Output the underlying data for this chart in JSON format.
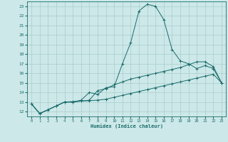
{
  "xlabel": "Humidex (Indice chaleur)",
  "bg_color": "#cce8e8",
  "grid_color": "#aacccc",
  "line_color": "#1a6b6b",
  "xlim": [
    -0.5,
    23.5
  ],
  "ylim": [
    11.5,
    23.5
  ],
  "yticks": [
    12,
    13,
    14,
    15,
    16,
    17,
    18,
    19,
    20,
    21,
    22,
    23
  ],
  "xticks": [
    0,
    1,
    2,
    3,
    4,
    5,
    6,
    7,
    8,
    9,
    10,
    11,
    12,
    13,
    14,
    15,
    16,
    17,
    18,
    19,
    20,
    21,
    22,
    23
  ],
  "line1_x": [
    0,
    1,
    2,
    3,
    4,
    5,
    6,
    7,
    8,
    9,
    10,
    11,
    12,
    13,
    14,
    15,
    16,
    17,
    18,
    19,
    20,
    21,
    22,
    23
  ],
  "line1_y": [
    12.8,
    11.8,
    12.2,
    12.6,
    13.0,
    13.05,
    13.1,
    13.15,
    13.2,
    13.3,
    13.5,
    13.7,
    13.9,
    14.1,
    14.3,
    14.5,
    14.7,
    14.9,
    15.1,
    15.3,
    15.5,
    15.7,
    15.9,
    15.0
  ],
  "line2_x": [
    0,
    1,
    2,
    3,
    4,
    5,
    6,
    7,
    8,
    9,
    10,
    11,
    12,
    13,
    14,
    15,
    16,
    17,
    18,
    19,
    20,
    21,
    22,
    23
  ],
  "line2_y": [
    12.8,
    11.8,
    12.2,
    12.6,
    13.0,
    13.0,
    13.2,
    14.0,
    13.8,
    14.5,
    14.6,
    17.0,
    19.2,
    22.5,
    23.2,
    23.0,
    21.6,
    18.5,
    17.3,
    17.0,
    16.5,
    16.8,
    16.5,
    15.0
  ],
  "line3_x": [
    0,
    1,
    2,
    3,
    4,
    5,
    6,
    7,
    8,
    9,
    10,
    11,
    12,
    13,
    14,
    15,
    16,
    17,
    18,
    19,
    20,
    21,
    22,
    23
  ],
  "line3_y": [
    12.8,
    11.8,
    12.2,
    12.6,
    13.0,
    13.0,
    13.1,
    13.2,
    14.2,
    14.4,
    14.8,
    15.1,
    15.4,
    15.6,
    15.8,
    16.0,
    16.2,
    16.4,
    16.6,
    16.9,
    17.2,
    17.2,
    16.7,
    15.0
  ]
}
